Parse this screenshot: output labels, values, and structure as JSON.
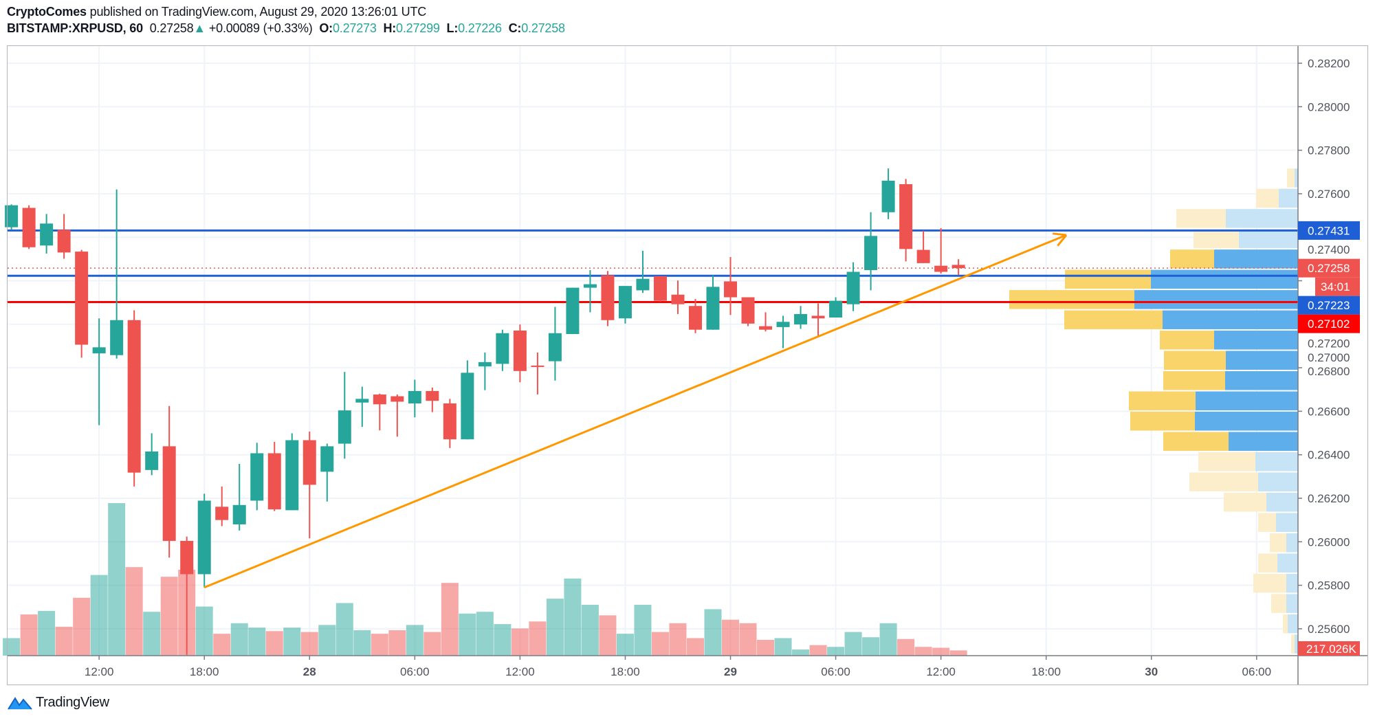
{
  "header": {
    "author": "CryptoComes",
    "published_text": "published on TradingView.com, August 29, 2020 13:26:01 UTC",
    "symbol": "BITSTAMP:XRPUSD, 60",
    "last_price": "0.27258",
    "change_arrow": "▲",
    "change": "+0.00089 (+0.33%)",
    "open_label": "O:",
    "open": "0.27273",
    "high_label": "H:",
    "high": "0.27299",
    "low_label": "L:",
    "low": "0.27226",
    "close_label": "C:",
    "close": "0.27258"
  },
  "colors": {
    "up": "#26a69a",
    "down": "#ef5350",
    "level_blue": "#1e5fd6",
    "level_red": "#ff0000",
    "trendline": "#ff9800",
    "vp_up": "#5daeea",
    "vp_down": "#f9d46a",
    "vp_up_light": "#c7e3f6",
    "vp_down_light": "#fdeecb",
    "axis_text": "#50535e",
    "grid": "#f0f3fa"
  },
  "chart_data": {
    "type": "candlestick",
    "symbol": "BITSTAMP:XRPUSD",
    "interval": "60",
    "columns": [
      "time",
      "open",
      "high",
      "low",
      "close",
      "volume"
    ],
    "candles": [
      [
        "2020-08-27T07:00",
        0.27446,
        0.27551,
        0.27434,
        0.27547,
        20
      ],
      [
        "2020-08-27T08:00",
        0.27535,
        0.27547,
        0.27346,
        0.27354,
        47
      ],
      [
        "2020-08-27T09:00",
        0.27362,
        0.27507,
        0.27325,
        0.27463,
        51
      ],
      [
        "2020-08-27T10:00",
        0.27434,
        0.27507,
        0.27301,
        0.2733,
        33
      ],
      [
        "2020-08-27T11:00",
        0.27334,
        0.27342,
        0.26846,
        0.26906,
        66
      ],
      [
        "2020-08-27T12:00",
        0.26866,
        0.27027,
        0.26536,
        0.26894,
        92
      ],
      [
        "2020-08-27T13:00",
        0.26858,
        0.2762,
        0.26842,
        0.27019,
        174
      ],
      [
        "2020-08-27T14:00",
        0.27019,
        0.27064,
        0.26254,
        0.26318,
        101
      ],
      [
        "2020-08-27T15:00",
        0.2633,
        0.26499,
        0.26306,
        0.26415,
        50
      ],
      [
        "2020-08-27T16:00",
        0.26439,
        0.26624,
        0.25927,
        0.26004,
        90
      ],
      [
        "2020-08-27T17:00",
        0.26004,
        0.26024,
        0.2548,
        0.25851,
        98
      ],
      [
        "2020-08-27T18:00",
        0.25851,
        0.26221,
        0.2579,
        0.26189,
        56
      ],
      [
        "2020-08-27T19:00",
        0.26161,
        0.26254,
        0.26072,
        0.261,
        25
      ],
      [
        "2020-08-27T20:00",
        0.2608,
        0.26358,
        0.26052,
        0.26169,
        37
      ],
      [
        "2020-08-27T21:00",
        0.26189,
        0.26455,
        0.26145,
        0.26407,
        32
      ],
      [
        "2020-08-27T22:00",
        0.26407,
        0.26459,
        0.26141,
        0.26149,
        28
      ],
      [
        "2020-08-27T23:00",
        0.26145,
        0.26499,
        0.26145,
        0.26467,
        32
      ],
      [
        "2020-08-28T00:00",
        0.26467,
        0.26507,
        0.26016,
        0.26262,
        27
      ],
      [
        "2020-08-28T01:00",
        0.26322,
        0.26451,
        0.26185,
        0.26439,
        35
      ],
      [
        "2020-08-28T02:00",
        0.26451,
        0.26781,
        0.26382,
        0.26604,
        60
      ],
      [
        "2020-08-28T03:00",
        0.2664,
        0.26713,
        0.26528,
        0.26657,
        29
      ],
      [
        "2020-08-28T04:00",
        0.26677,
        0.26681,
        0.26512,
        0.26632,
        25
      ],
      [
        "2020-08-28T05:00",
        0.26669,
        0.26677,
        0.26483,
        0.26644,
        29
      ],
      [
        "2020-08-28T06:00",
        0.26636,
        0.26745,
        0.26572,
        0.26693,
        35
      ],
      [
        "2020-08-28T07:00",
        0.26693,
        0.26709,
        0.26596,
        0.26648,
        27
      ],
      [
        "2020-08-28T08:00",
        0.26636,
        0.26657,
        0.26431,
        0.26471,
        83
      ],
      [
        "2020-08-28T09:00",
        0.26471,
        0.26834,
        0.26471,
        0.26777,
        48
      ],
      [
        "2020-08-28T10:00",
        0.26806,
        0.2687,
        0.26697,
        0.26826,
        50
      ],
      [
        "2020-08-28T11:00",
        0.26818,
        0.26975,
        0.26785,
        0.26959,
        36
      ],
      [
        "2020-08-28T12:00",
        0.26971,
        0.26999,
        0.26733,
        0.26785,
        31
      ],
      [
        "2020-08-28T13:00",
        0.2681,
        0.2687,
        0.26677,
        0.26806,
        39
      ],
      [
        "2020-08-28T14:00",
        0.2683,
        0.2708,
        0.26741,
        0.26959,
        65
      ],
      [
        "2020-08-28T15:00",
        0.26955,
        0.27168,
        0.26955,
        0.27168,
        88
      ],
      [
        "2020-08-28T16:00",
        0.27168,
        0.27249,
        0.27055,
        0.27184,
        58
      ],
      [
        "2020-08-28T17:00",
        0.27225,
        0.27245,
        0.26991,
        0.27019,
        46
      ],
      [
        "2020-08-28T18:00",
        0.27027,
        0.27176,
        0.27003,
        0.27176,
        25
      ],
      [
        "2020-08-28T19:00",
        0.27156,
        0.27338,
        0.27144,
        0.27209,
        58
      ],
      [
        "2020-08-28T20:00",
        0.27221,
        0.27221,
        0.27104,
        0.27108,
        27
      ],
      [
        "2020-08-28T21:00",
        0.27136,
        0.27201,
        0.27047,
        0.27092,
        37
      ],
      [
        "2020-08-28T22:00",
        0.27084,
        0.27116,
        0.26959,
        0.26975,
        20
      ],
      [
        "2020-08-28T23:00",
        0.26975,
        0.27225,
        0.26975,
        0.27172,
        53
      ],
      [
        "2020-08-29T00:00",
        0.27197,
        0.27309,
        0.27043,
        0.27124,
        41
      ],
      [
        "2020-08-29T01:00",
        0.27124,
        0.27124,
        0.26991,
        0.27003,
        37
      ],
      [
        "2020-08-29T02:00",
        0.26991,
        0.27055,
        0.26967,
        0.26975,
        18
      ],
      [
        "2020-08-29T03:00",
        0.26987,
        0.27039,
        0.2689,
        0.27011,
        20
      ],
      [
        "2020-08-29T04:00",
        0.26999,
        0.27084,
        0.26979,
        0.27047,
        7
      ],
      [
        "2020-08-29T05:00",
        0.27039,
        0.27096,
        0.26943,
        0.27027,
        12
      ],
      [
        "2020-08-29T06:00",
        0.27031,
        0.27124,
        0.27031,
        0.27108,
        10
      ],
      [
        "2020-08-29T07:00",
        0.27092,
        0.27285,
        0.2706,
        0.27241,
        27
      ],
      [
        "2020-08-29T08:00",
        0.27249,
        0.27515,
        0.27156,
        0.27406,
        21
      ],
      [
        "2020-08-29T09:00",
        0.27515,
        0.27716,
        0.27483,
        0.2766,
        37
      ],
      [
        "2020-08-29T10:00",
        0.27644,
        0.27668,
        0.27289,
        0.27346,
        19
      ],
      [
        "2020-08-29T11:00",
        0.27342,
        0.2743,
        0.27281,
        0.27281,
        10
      ],
      [
        "2020-08-29T12:00",
        0.27269,
        0.27442,
        0.27233,
        0.27241,
        9
      ],
      [
        "2020-08-29T13:00",
        0.27273,
        0.27299,
        0.27226,
        0.27258,
        6
      ]
    ],
    "price_axis": {
      "range": [
        0.2548,
        0.283
      ],
      "ticks": [
        "0.28200",
        "0.28000",
        "0.27800",
        "0.27600",
        "0.27400",
        "0.27200",
        "0.27000",
        "0.26800",
        "0.26600",
        "0.26400",
        "0.26200",
        "0.26000",
        "0.25800",
        "0.25600"
      ]
    },
    "time_axis": {
      "ticks": [
        {
          "t": "2020-08-27T12:00",
          "label": "12:00",
          "bold": false
        },
        {
          "t": "2020-08-27T18:00",
          "label": "18:00",
          "bold": false
        },
        {
          "t": "2020-08-28T00:00",
          "label": "28",
          "bold": true
        },
        {
          "t": "2020-08-28T06:00",
          "label": "06:00",
          "bold": false
        },
        {
          "t": "2020-08-28T12:00",
          "label": "12:00",
          "bold": false
        },
        {
          "t": "2020-08-28T18:00",
          "label": "18:00",
          "bold": false
        },
        {
          "t": "2020-08-29T00:00",
          "label": "29",
          "bold": true
        },
        {
          "t": "2020-08-29T06:00",
          "label": "06:00",
          "bold": false
        },
        {
          "t": "2020-08-29T12:00",
          "label": "12:00",
          "bold": false
        },
        {
          "t": "2020-08-29T18:00",
          "label": "18:00",
          "bold": false
        },
        {
          "t": "2020-08-30T00:00",
          "label": "30",
          "bold": true
        },
        {
          "t": "2020-08-30T06:00",
          "label": "06:00",
          "bold": false
        }
      ]
    },
    "horizontal_lines": [
      {
        "price": 0.27431,
        "label": "0.27431",
        "color": "level_blue"
      },
      {
        "price": 0.27223,
        "label": "0.27223",
        "color": "level_blue"
      },
      {
        "price": 0.27102,
        "label": "0.27102",
        "color": "level_red"
      }
    ],
    "last_price_line": {
      "price": 0.27258,
      "label": "0.27258",
      "countdown": "34:01"
    },
    "trendline": {
      "from": {
        "t": "2020-08-27T18:00",
        "price": 0.2579
      },
      "to": {
        "t": "2020-08-29T19:09",
        "price": 0.2741
      },
      "arrow": true
    },
    "volume_label": "217.026K",
    "volume_profile": {
      "price_range": [
        0.2548,
        0.27716
      ],
      "value_area_rows": [
        5,
        14
      ],
      "rows_top_to_bottom": [
        {
          "up": 5,
          "down": 11
        },
        {
          "up": 28,
          "down": 33
        },
        {
          "up": 105,
          "down": 72
        },
        {
          "up": 86,
          "down": 66
        },
        {
          "up": 122,
          "down": 64
        },
        {
          "up": 214,
          "down": 125
        },
        {
          "up": 238,
          "down": 182
        },
        {
          "up": 197,
          "down": 143
        },
        {
          "up": 122,
          "down": 79
        },
        {
          "up": 105,
          "down": 90
        },
        {
          "up": 106,
          "down": 90
        },
        {
          "up": 149,
          "down": 97
        },
        {
          "up": 150,
          "down": 94
        },
        {
          "up": 101,
          "down": 95
        },
        {
          "up": 62,
          "down": 83
        },
        {
          "up": 58,
          "down": 100
        },
        {
          "up": 46,
          "down": 62
        },
        {
          "up": 32,
          "down": 26
        },
        {
          "up": 17,
          "down": 24
        },
        {
          "up": 30,
          "down": 28
        },
        {
          "up": 17,
          "down": 48
        },
        {
          "up": 17,
          "down": 22
        },
        {
          "up": 15,
          "down": 7
        },
        {
          "up": 5,
          "down": 5
        }
      ]
    }
  },
  "footer": {
    "logo_text": "TradingView"
  }
}
